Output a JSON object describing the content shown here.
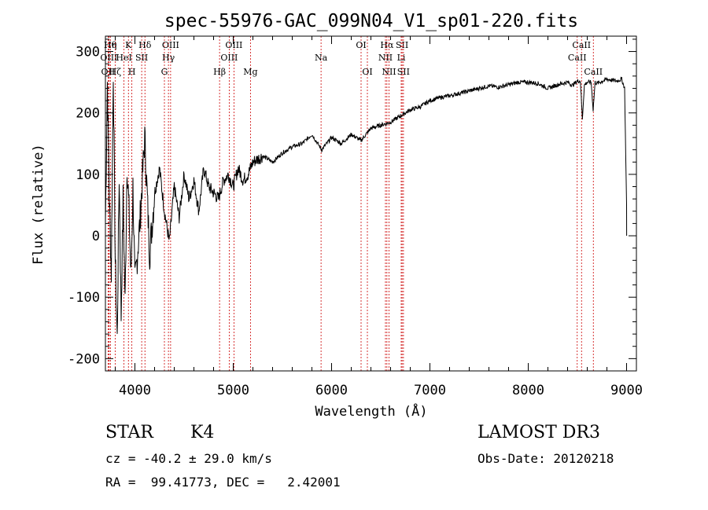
{
  "chart_data": {
    "type": "line",
    "title": "spec-55976-GAC_099N04_V1_sp01-220.fits",
    "xlabel": "Wavelength (Å)",
    "ylabel": "Flux (relative)",
    "xlim": [
      3700,
      9100
    ],
    "ylim": [
      -220,
      325
    ],
    "x_ticks": [
      4000,
      5000,
      6000,
      7000,
      8000,
      9000
    ],
    "y_ticks": [
      -200,
      -100,
      0,
      100,
      200,
      300
    ],
    "grid": false,
    "line_color": "#000000",
    "marker_color": "#cc0000",
    "series": [
      {
        "name": "flux",
        "x": [
          3700,
          3720,
          3740,
          3760,
          3780,
          3800,
          3820,
          3840,
          3860,
          3880,
          3900,
          3920,
          3940,
          3960,
          3980,
          4000,
          4050,
          4100,
          4150,
          4200,
          4250,
          4300,
          4350,
          4400,
          4450,
          4500,
          4550,
          4600,
          4650,
          4700,
          4750,
          4800,
          4850,
          4900,
          4950,
          5000,
          5050,
          5100,
          5150,
          5200,
          5300,
          5400,
          5500,
          5600,
          5700,
          5800,
          5900,
          6000,
          6100,
          6200,
          6300,
          6400,
          6500,
          6600,
          6700,
          6800,
          6900,
          7000,
          7100,
          7200,
          7300,
          7400,
          7500,
          7600,
          7700,
          7800,
          7900,
          8000,
          8100,
          8200,
          8300,
          8400,
          8450,
          8500,
          8530,
          8550,
          8570,
          8600,
          8640,
          8660,
          8680,
          8700,
          8800,
          8900,
          8950,
          8980,
          9000,
          9001
        ],
        "y": [
          20,
          250,
          60,
          -60,
          270,
          -40,
          -170,
          100,
          -130,
          60,
          -110,
          120,
          40,
          -70,
          80,
          -80,
          20,
          160,
          -30,
          70,
          110,
          40,
          -10,
          80,
          30,
          100,
          60,
          90,
          40,
          110,
          80,
          70,
          60,
          90,
          100,
          80,
          110,
          90,
          100,
          120,
          130,
          120,
          135,
          145,
          150,
          165,
          140,
          160,
          150,
          165,
          155,
          175,
          180,
          185,
          195,
          205,
          210,
          220,
          225,
          228,
          232,
          236,
          240,
          244,
          242,
          246,
          250,
          250,
          248,
          240,
          246,
          250,
          245,
          252,
          252,
          190,
          245,
          250,
          250,
          205,
          250,
          248,
          255,
          252,
          255,
          240,
          50,
          0
        ]
      }
    ],
    "line_markers": [
      {
        "label": "OII",
        "x": 3727,
        "row": 3
      },
      {
        "label": "Hθ",
        "x": 3750,
        "row": 1
      },
      {
        "label": "Hη",
        "x": 3750,
        "row": 1
      },
      {
        "label": "OIII",
        "x": 3735,
        "row": 2
      },
      {
        "label": "Hζ",
        "x": 3799,
        "row": 3
      },
      {
        "label": "K",
        "x": 3934,
        "row": 1
      },
      {
        "label": "HeI",
        "x": 3889,
        "row": 2
      },
      {
        "label": "H",
        "x": 3969,
        "row": 3
      },
      {
        "label": "SII",
        "x": 4069,
        "row": 2
      },
      {
        "label": "Hδ",
        "x": 4102,
        "row": 1
      },
      {
        "label": "OIII",
        "x": 4363,
        "row": 1
      },
      {
        "label": "Hγ",
        "x": 4341,
        "row": 2
      },
      {
        "label": "G",
        "x": 4300,
        "row": 3
      },
      {
        "label": "Hβ",
        "x": 4861,
        "row": 3
      },
      {
        "label": "OIII",
        "x": 5007,
        "row": 1
      },
      {
        "label": "OIII",
        "x": 4959,
        "row": 2
      },
      {
        "label": "Mg",
        "x": 5175,
        "row": 3
      },
      {
        "label": "Na",
        "x": 5893,
        "row": 2
      },
      {
        "label": "OI",
        "x": 6300,
        "row": 1
      },
      {
        "label": "OI",
        "x": 6364,
        "row": 3
      },
      {
        "label": "Hα",
        "x": 6563,
        "row": 1
      },
      {
        "label": "NII",
        "x": 6548,
        "row": 2
      },
      {
        "label": "NII",
        "x": 6584,
        "row": 3
      },
      {
        "label": "SII",
        "x": 6717,
        "row": 1
      },
      {
        "label": "Li",
        "x": 6708,
        "row": 2
      },
      {
        "label": "SII",
        "x": 6731,
        "row": 3
      },
      {
        "label": "CaII",
        "x": 8542,
        "row": 1
      },
      {
        "label": "CaII",
        "x": 8498,
        "row": 2
      },
      {
        "label": "CaII",
        "x": 8662,
        "row": 3
      }
    ]
  },
  "info": {
    "class_label": "STAR",
    "subclass_label": "K4",
    "survey": "LAMOST DR3",
    "cz": "cz = -40.2 ± 29.0 km/s",
    "obs_date": "Obs-Date: 20120218",
    "radec": "RA =  99.41773, DEC =   2.42001"
  }
}
